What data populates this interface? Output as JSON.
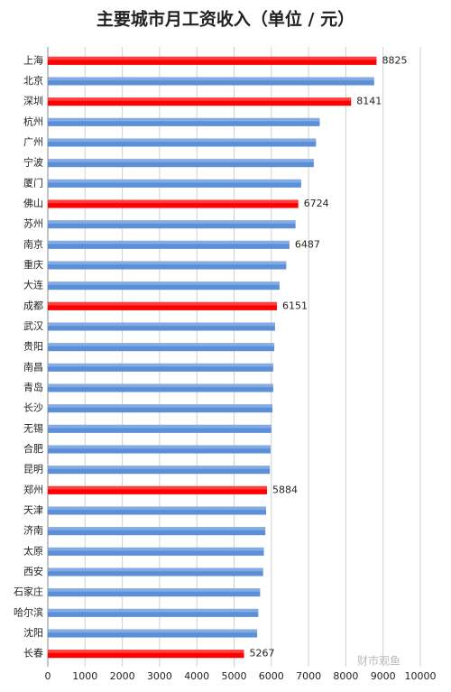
{
  "chart_data": {
    "type": "barh",
    "title": "主要城市月工资收入（单位 / 元）",
    "categories": [
      "上海",
      "北京",
      "深圳",
      "杭州",
      "广州",
      "宁波",
      "厦门",
      "佛山",
      "苏州",
      "南京",
      "重庆",
      "大连",
      "成都",
      "武汉",
      "贵阳",
      "南昌",
      "青岛",
      "长沙",
      "无锡",
      "合肥",
      "昆明",
      "郑州",
      "天津",
      "济南",
      "太原",
      "西安",
      "石家庄",
      "哈尔滨",
      "沈阳",
      "长春"
    ],
    "values": [
      8825,
      8760,
      8141,
      7300,
      7200,
      7140,
      6800,
      6724,
      6650,
      6487,
      6400,
      6220,
      6151,
      6100,
      6080,
      6050,
      6050,
      6030,
      6000,
      5980,
      5960,
      5884,
      5860,
      5840,
      5800,
      5780,
      5700,
      5650,
      5620,
      5267
    ],
    "value_labels": [
      "8825",
      null,
      "8141",
      null,
      null,
      null,
      null,
      "6724",
      null,
      "6487",
      null,
      null,
      "6151",
      null,
      null,
      null,
      null,
      null,
      null,
      null,
      null,
      "5884",
      null,
      null,
      null,
      null,
      null,
      null,
      null,
      "5267"
    ],
    "colors": [
      "#ff0000",
      "#5b8fd9",
      "#ff0000",
      "#5b8fd9",
      "#5b8fd9",
      "#5b8fd9",
      "#5b8fd9",
      "#ff0000",
      "#5b8fd9",
      "#5b8fd9",
      "#5b8fd9",
      "#5b8fd9",
      "#ff0000",
      "#5b8fd9",
      "#5b8fd9",
      "#5b8fd9",
      "#5b8fd9",
      "#5b8fd9",
      "#5b8fd9",
      "#5b8fd9",
      "#5b8fd9",
      "#ff0000",
      "#5b8fd9",
      "#5b8fd9",
      "#5b8fd9",
      "#5b8fd9",
      "#5b8fd9",
      "#5b8fd9",
      "#5b8fd9",
      "#ff0000"
    ],
    "xlim": [
      0,
      10000
    ],
    "xticks": [
      0,
      1000,
      2000,
      3000,
      4000,
      5000,
      6000,
      7000,
      8000,
      9000,
      10000
    ],
    "grid": true,
    "watermark": "财市观鱼"
  }
}
